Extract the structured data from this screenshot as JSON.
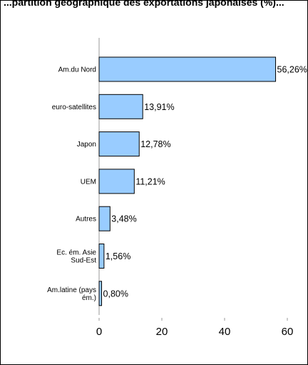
{
  "chart_data": {
    "type": "bar",
    "orientation": "horizontal",
    "title": "...partition géographique des exportations japonaises (%)...",
    "categories": [
      [
        "Am.du Nord"
      ],
      [
        "euro-satellites"
      ],
      [
        "Japon"
      ],
      [
        "UEM"
      ],
      [
        "Autres"
      ],
      [
        "Ec. ém. Asie",
        "Sud-Est"
      ],
      [
        "Am.latine (pays",
        "ém.)"
      ]
    ],
    "values": [
      56.26,
      13.91,
      12.78,
      11.21,
      3.48,
      1.56,
      0.8
    ],
    "value_labels": [
      "56,26%",
      "13,91%",
      "12,78%",
      "11,21%",
      "3,48%",
      "1,56%",
      "0,80%"
    ],
    "xticks": [
      0,
      20,
      40,
      60
    ],
    "xlim": [
      0,
      60
    ],
    "bar_color": "#99ccff",
    "bar_border": "#000000",
    "grid": false
  }
}
